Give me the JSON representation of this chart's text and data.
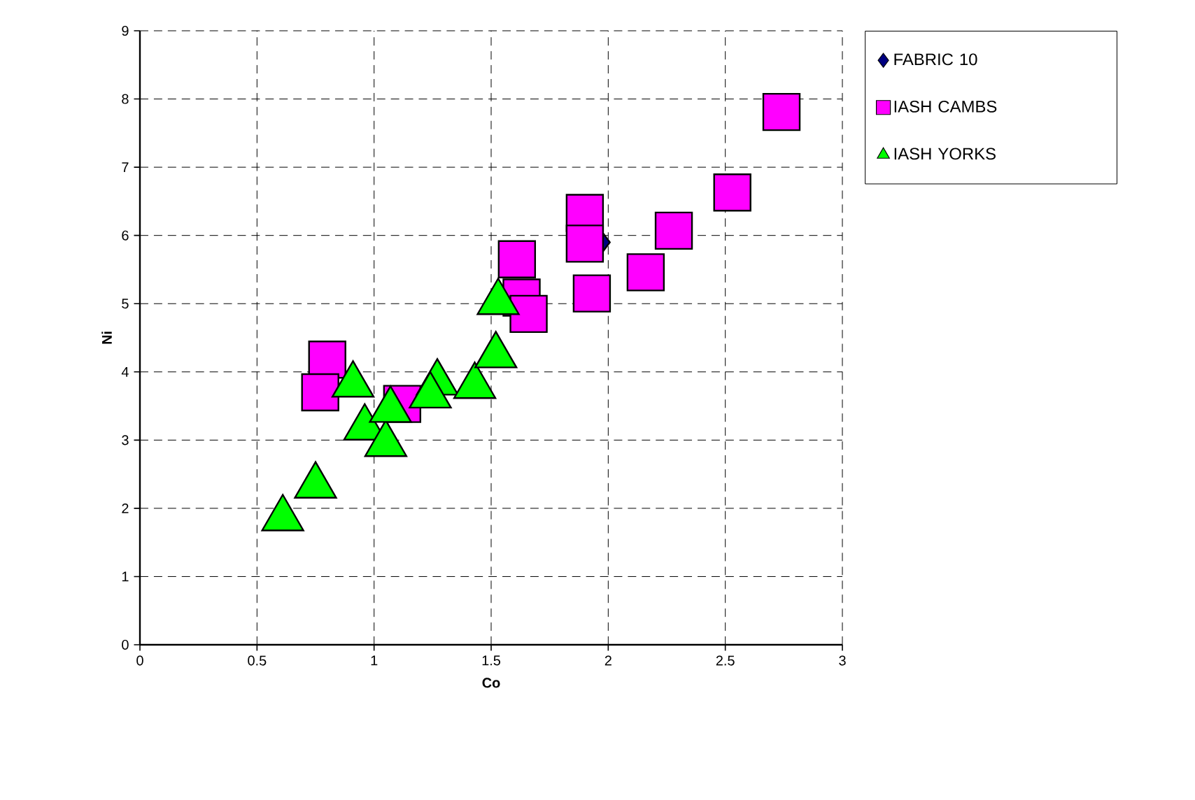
{
  "chart_data": {
    "type": "scatter",
    "xlabel": "Co",
    "ylabel": "Ni",
    "xlim": [
      0,
      3
    ],
    "ylim": [
      0,
      9
    ],
    "xticks": [
      0,
      0.5,
      1,
      1.5,
      2,
      2.5,
      3
    ],
    "yticks": [
      0,
      1,
      2,
      3,
      4,
      5,
      6,
      7,
      8,
      9
    ],
    "grid": true,
    "legend": "right",
    "series": [
      {
        "name": "FABRIC 10",
        "color": "#000080",
        "marker": "diamond",
        "x": [
          1.98
        ],
        "values": [
          5.9
        ]
      },
      {
        "name": "IASH CAMBS",
        "color": "#ff00ff",
        "marker": "square",
        "x": [
          0.8,
          0.77,
          1.12,
          1.9,
          1.9,
          1.93,
          2.16,
          2.28,
          2.53,
          2.74,
          1.61,
          1.63,
          1.66
        ],
        "values": [
          4.18,
          3.7,
          3.53,
          6.33,
          5.88,
          5.15,
          5.46,
          6.07,
          6.63,
          7.81,
          5.65,
          5.09,
          4.85
        ]
      },
      {
        "name": "IASH YORKS",
        "color": "#00ff00",
        "marker": "triangle",
        "x": [
          0.61,
          0.75,
          0.91,
          0.96,
          1.05,
          1.07,
          1.27,
          1.24,
          1.43,
          1.52,
          1.53
        ],
        "values": [
          1.85,
          2.33,
          3.81,
          3.18,
          2.94,
          3.44,
          3.84,
          3.65,
          3.79,
          4.24,
          5.02
        ]
      }
    ]
  }
}
